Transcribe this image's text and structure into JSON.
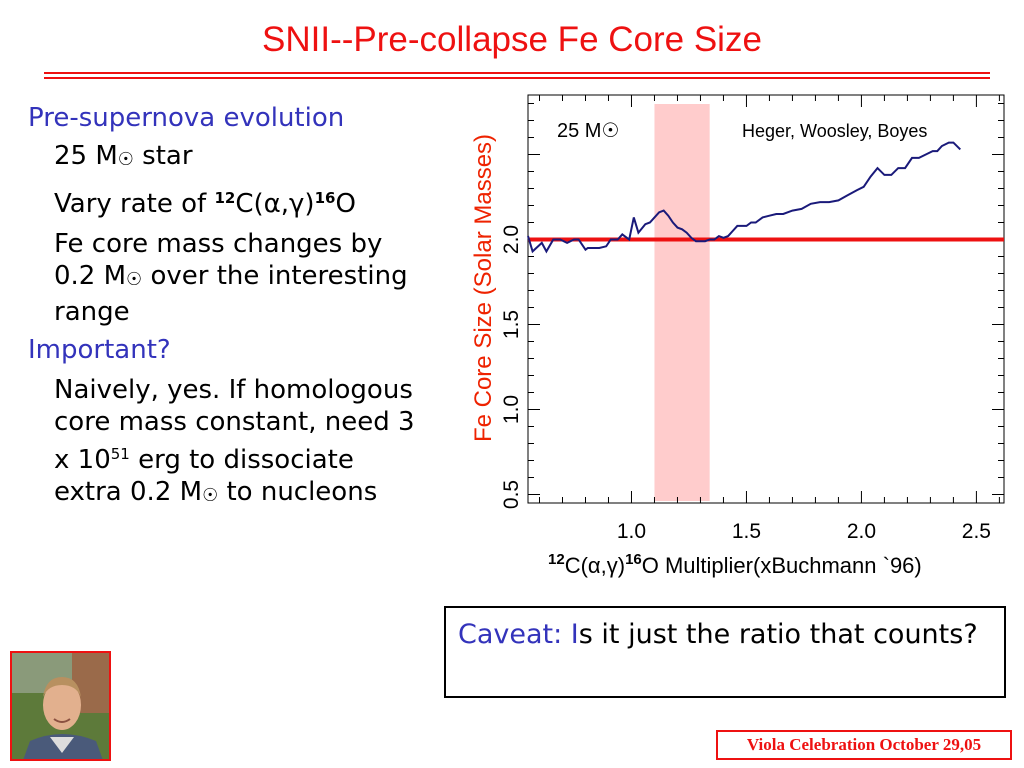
{
  "title": "SNII--Pre-collapse Fe Core Size",
  "left_text": {
    "h1": "Pre-supernova evolution",
    "star_line": {
      "pre": "25 M",
      "sun": "☉",
      "post": " star"
    },
    "vary_line": {
      "pre": "Vary rate of ",
      "sup1": "12",
      "mid": "C(α,γ)",
      "sup2": "16",
      "post": "O"
    },
    "fe_line": {
      "pre": "Fe core mass changes by 0.2 M",
      "sun": "☉",
      "post": " over the interesting range"
    },
    "h2": "Important?",
    "naive_line": {
      "pre": "Naively, yes.  If homologous core mass constant, need 3 x 10",
      "sup": "51",
      "mid": " erg to dissociate extra 0.2 M",
      "sun": "☉",
      "post": " to nucleons"
    }
  },
  "chart_data": {
    "type": "line",
    "title": "",
    "annotations": [
      "25 M☉",
      "Heger, Woosley, Boyes"
    ],
    "ylabel": "Fe Core Size (Solar Masses)",
    "xlabel": {
      "sup1": "12",
      "pre": "C(α,γ)",
      "sup2": "16",
      "post": "O Multiplier(xBuchmann `96)"
    },
    "xlim": [
      0.55,
      2.62
    ],
    "ylim": [
      0.45,
      2.85
    ],
    "x_ticks": [
      1.0,
      1.5,
      2.0,
      2.5
    ],
    "x_ticklabels": [
      "1.0",
      "1.5",
      "2.0",
      "2.5"
    ],
    "y_ticks": [
      0.5,
      1.0,
      1.5,
      2.0
    ],
    "y_ticklabels": [
      "0.5",
      "1.0",
      "1.5",
      "2.0"
    ],
    "reference_line_y": 2.0,
    "highlight_x_range": [
      1.1,
      1.34
    ],
    "colors": {
      "series": "#1a1a7a",
      "reference": "#ee1111",
      "highlight": "#ffcccc",
      "ylabel": "#ee2200"
    },
    "series": [
      {
        "x": [
          0.55,
          0.57,
          0.61,
          0.63,
          0.66,
          0.69,
          0.72,
          0.75,
          0.77,
          0.8,
          0.81,
          0.83,
          0.86,
          0.89,
          0.91,
          0.94,
          0.96,
          0.99,
          1.01,
          1.03,
          1.06,
          1.08,
          1.1,
          1.12,
          1.14,
          1.16,
          1.18,
          1.2,
          1.22,
          1.24,
          1.26,
          1.28,
          1.3,
          1.32,
          1.34,
          1.36,
          1.38,
          1.4,
          1.42,
          1.44,
          1.46,
          1.48,
          1.5,
          1.52,
          1.54,
          1.57,
          1.6,
          1.63,
          1.66,
          1.7,
          1.74,
          1.78,
          1.82,
          1.86,
          1.9,
          1.94,
          1.98,
          2.01,
          2.04,
          2.07,
          2.1,
          2.13,
          2.16,
          2.19,
          2.22,
          2.25,
          2.28,
          2.31,
          2.33,
          2.35,
          2.38,
          2.4,
          2.43
        ],
        "y": [
          2.02,
          1.93,
          1.98,
          1.93,
          2.0,
          2.0,
          1.98,
          2.0,
          2.0,
          1.94,
          1.95,
          1.95,
          1.95,
          1.96,
          2.0,
          2.0,
          2.03,
          2.0,
          2.13,
          2.04,
          2.09,
          2.1,
          2.13,
          2.16,
          2.17,
          2.14,
          2.1,
          2.07,
          2.06,
          2.04,
          2.01,
          1.99,
          1.99,
          1.99,
          2.0,
          2.0,
          2.02,
          2.01,
          2.02,
          2.05,
          2.08,
          2.08,
          2.08,
          2.1,
          2.1,
          2.13,
          2.14,
          2.15,
          2.15,
          2.17,
          2.18,
          2.21,
          2.22,
          2.22,
          2.23,
          2.26,
          2.29,
          2.31,
          2.37,
          2.42,
          2.38,
          2.38,
          2.42,
          2.42,
          2.48,
          2.48,
          2.5,
          2.52,
          2.52,
          2.55,
          2.57,
          2.57,
          2.53
        ]
      }
    ]
  },
  "caveat": {
    "label": "Caveat: I",
    "text": "s it just the ratio that counts?"
  },
  "footer": "Viola Celebration October 29,05"
}
